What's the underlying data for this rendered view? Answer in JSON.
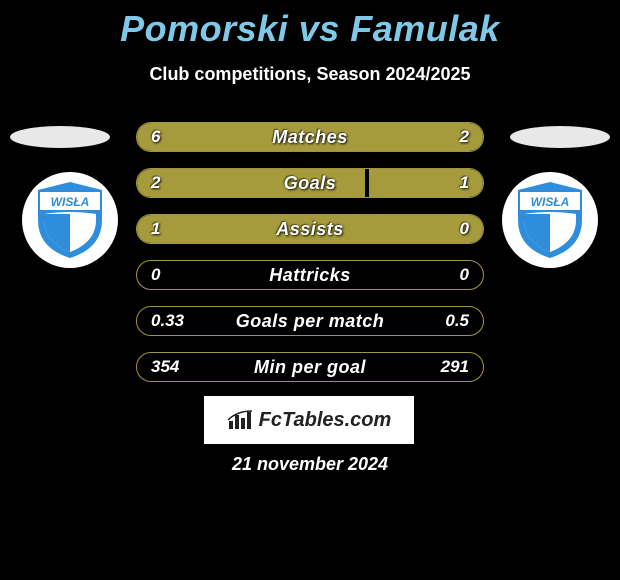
{
  "title": "Pomorski vs Famulak",
  "title_color": "#7fc9e8",
  "subtitle": "Club competitions, Season 2024/2025",
  "brand": "FcTables.com",
  "date_text": "21 november 2024",
  "background_color": "#000000",
  "bar_border_color": "#a09440",
  "bar_fill_color": "#a59a3c",
  "bar_label_fontsize": 18,
  "bar_value_fontsize": 17,
  "club_logo": {
    "text": "WISŁA",
    "top_color": "#2e8edb",
    "bottom_color": "#2e8edb",
    "middle_color": "#ffffff"
  },
  "bars": [
    {
      "label": "Matches",
      "left_val": "6",
      "right_val": "2",
      "left_pct": 75,
      "right_pct": 25
    },
    {
      "label": "Goals",
      "left_val": "2",
      "right_val": "1",
      "left_pct": 66,
      "right_pct": 33
    },
    {
      "label": "Assists",
      "left_val": "1",
      "right_val": "0",
      "left_pct": 100,
      "right_pct": 0
    },
    {
      "label": "Hattricks",
      "left_val": "0",
      "right_val": "0",
      "left_pct": 0,
      "right_pct": 0
    },
    {
      "label": "Goals per match",
      "left_val": "0.33",
      "right_val": "0.5",
      "left_pct": 0,
      "right_pct": 0
    },
    {
      "label": "Min per goal",
      "left_val": "354",
      "right_val": "291",
      "left_pct": 0,
      "right_pct": 0
    }
  ]
}
